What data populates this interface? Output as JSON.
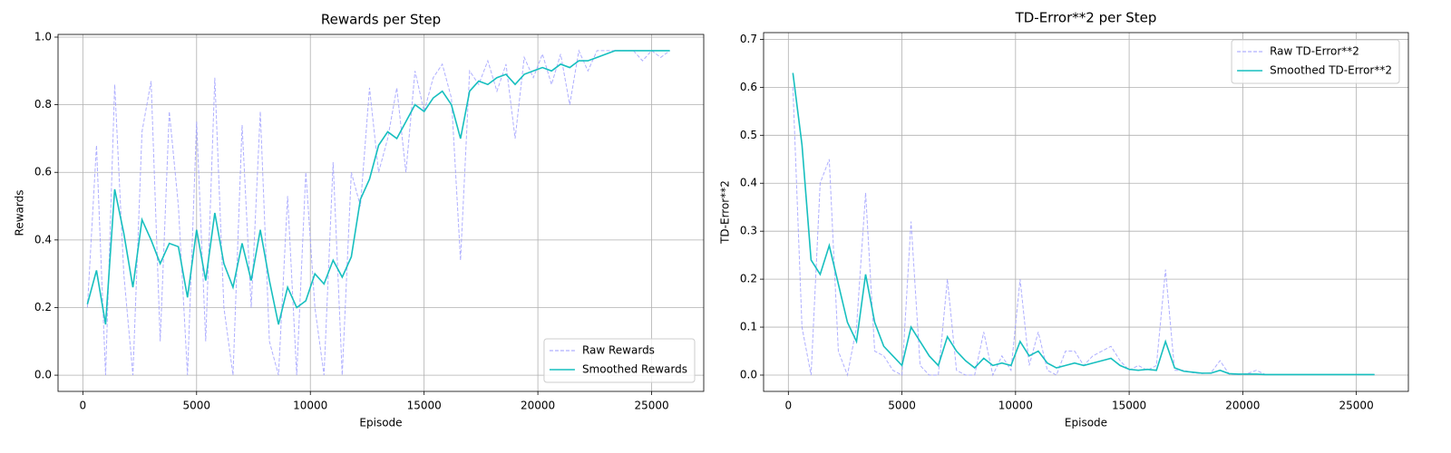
{
  "chart_data": [
    {
      "type": "line",
      "title": "Rewards per Step",
      "xlabel": "Episode",
      "ylabel": "Rewards",
      "x": [
        200,
        600,
        1000,
        1400,
        1800,
        2200,
        2600,
        3000,
        3400,
        3800,
        4200,
        4600,
        5000,
        5400,
        5800,
        6200,
        6600,
        7000,
        7400,
        7800,
        8200,
        8600,
        9000,
        9400,
        9800,
        10200,
        10600,
        11000,
        11400,
        11800,
        12200,
        12600,
        13000,
        13400,
        13800,
        14200,
        14600,
        15000,
        15400,
        15800,
        16200,
        16600,
        17000,
        17400,
        17800,
        18200,
        18600,
        19000,
        19400,
        19800,
        20200,
        20600,
        21000,
        21400,
        21800,
        22200,
        22600,
        23000,
        23400,
        23800,
        24200,
        24600,
        25000,
        25400,
        25800
      ],
      "series": [
        {
          "name": "Raw Rewards",
          "color": "#9b9bff",
          "dashed": true,
          "values": [
            0.2,
            0.68,
            0.0,
            0.86,
            0.3,
            0.0,
            0.72,
            0.87,
            0.1,
            0.78,
            0.5,
            0.0,
            0.75,
            0.1,
            0.88,
            0.2,
            0.0,
            0.74,
            0.2,
            0.78,
            0.1,
            0.0,
            0.53,
            0.0,
            0.6,
            0.2,
            0.0,
            0.63,
            0.0,
            0.6,
            0.5,
            0.85,
            0.6,
            0.7,
            0.85,
            0.6,
            0.9,
            0.78,
            0.88,
            0.92,
            0.82,
            0.34,
            0.9,
            0.86,
            0.93,
            0.84,
            0.92,
            0.7,
            0.94,
            0.88,
            0.95,
            0.86,
            0.95,
            0.8,
            0.96,
            0.9,
            0.96,
            0.96,
            0.96,
            0.96,
            0.96,
            0.93,
            0.96,
            0.94,
            0.96
          ]
        },
        {
          "name": "Smoothed Rewards",
          "color": "#17bfbf",
          "dashed": false,
          "values": [
            0.21,
            0.31,
            0.15,
            0.55,
            0.42,
            0.26,
            0.46,
            0.4,
            0.33,
            0.39,
            0.38,
            0.23,
            0.43,
            0.28,
            0.48,
            0.33,
            0.26,
            0.39,
            0.28,
            0.43,
            0.28,
            0.15,
            0.26,
            0.2,
            0.22,
            0.3,
            0.27,
            0.34,
            0.29,
            0.35,
            0.52,
            0.58,
            0.68,
            0.72,
            0.7,
            0.75,
            0.8,
            0.78,
            0.82,
            0.84,
            0.8,
            0.7,
            0.84,
            0.87,
            0.86,
            0.88,
            0.89,
            0.86,
            0.89,
            0.9,
            0.91,
            0.9,
            0.92,
            0.91,
            0.93,
            0.93,
            0.94,
            0.95,
            0.96,
            0.96,
            0.96,
            0.96,
            0.96,
            0.96,
            0.96
          ]
        }
      ],
      "xlim": [
        -1090,
        27290
      ],
      "ylim": [
        -0.048,
        1.008
      ],
      "xticks": [
        0,
        5000,
        10000,
        15000,
        20000,
        25000
      ],
      "yticks": [
        {
          "value": 0,
          "label": "0.0"
        },
        0.2,
        0.4,
        0.6,
        0.8,
        {
          "value": 1,
          "label": "1.0"
        }
      ],
      "grid": true,
      "legend": "lower right"
    },
    {
      "type": "line",
      "title": "TD-Error**2 per Step",
      "xlabel": "Episode",
      "ylabel": "TD-Error**2",
      "x": [
        200,
        600,
        1000,
        1400,
        1800,
        2200,
        2600,
        3000,
        3400,
        3800,
        4200,
        4600,
        5000,
        5400,
        5800,
        6200,
        6600,
        7000,
        7400,
        7800,
        8200,
        8600,
        9000,
        9400,
        9800,
        10200,
        10600,
        11000,
        11400,
        11800,
        12200,
        12600,
        13000,
        13400,
        13800,
        14200,
        14600,
        15000,
        15400,
        15800,
        16200,
        16600,
        17000,
        17400,
        17800,
        18200,
        18600,
        19000,
        19400,
        19800,
        20200,
        20600,
        21000,
        21400,
        21800,
        22200,
        22600,
        23000,
        23400,
        23800,
        24200,
        24600,
        25000,
        25400,
        25800
      ],
      "series": [
        {
          "name": "Raw TD-Error**2",
          "color": "#9b9bff",
          "dashed": true,
          "values": [
            0.6,
            0.1,
            0.0,
            0.4,
            0.45,
            0.05,
            0.0,
            0.1,
            0.38,
            0.05,
            0.04,
            0.01,
            0.0,
            0.32,
            0.02,
            0.0,
            0.0,
            0.2,
            0.01,
            0.0,
            0.0,
            0.09,
            0.0,
            0.04,
            0.01,
            0.2,
            0.02,
            0.09,
            0.01,
            0.0,
            0.05,
            0.05,
            0.02,
            0.04,
            0.05,
            0.06,
            0.03,
            0.01,
            0.02,
            0.01,
            0.02,
            0.22,
            0.01,
            0.01,
            0.005,
            0.003,
            0.005,
            0.03,
            0.002,
            0.001,
            0.003,
            0.01,
            0.001,
            0.001,
            0.001,
            0.001,
            0.001,
            0.001,
            0.001,
            0.001,
            0.001,
            0.001,
            0.001,
            0.001,
            0.001
          ]
        },
        {
          "name": "Smoothed TD-Error**2",
          "color": "#17bfbf",
          "dashed": false,
          "values": [
            0.63,
            0.48,
            0.24,
            0.21,
            0.27,
            0.19,
            0.11,
            0.07,
            0.21,
            0.11,
            0.06,
            0.04,
            0.02,
            0.1,
            0.07,
            0.04,
            0.02,
            0.08,
            0.05,
            0.03,
            0.015,
            0.035,
            0.02,
            0.025,
            0.02,
            0.07,
            0.04,
            0.05,
            0.025,
            0.015,
            0.02,
            0.025,
            0.02,
            0.025,
            0.03,
            0.035,
            0.02,
            0.012,
            0.01,
            0.012,
            0.01,
            0.07,
            0.015,
            0.008,
            0.006,
            0.004,
            0.004,
            0.01,
            0.003,
            0.002,
            0.002,
            0.002,
            0.001,
            0.001,
            0.001,
            0.001,
            0.001,
            0.001,
            0.001,
            0.001,
            0.001,
            0.001,
            0.001,
            0.001,
            0.001
          ]
        }
      ],
      "xlim": [
        -1090,
        27290
      ],
      "ylim": [
        -0.034,
        0.714
      ],
      "xticks": [
        0,
        5000,
        10000,
        15000,
        20000,
        25000
      ],
      "yticks": [
        {
          "value": 0,
          "label": "0.0"
        },
        0.1,
        0.2,
        0.3,
        0.4,
        0.5,
        0.6,
        0.7
      ],
      "grid": true,
      "legend": "upper right"
    }
  ]
}
